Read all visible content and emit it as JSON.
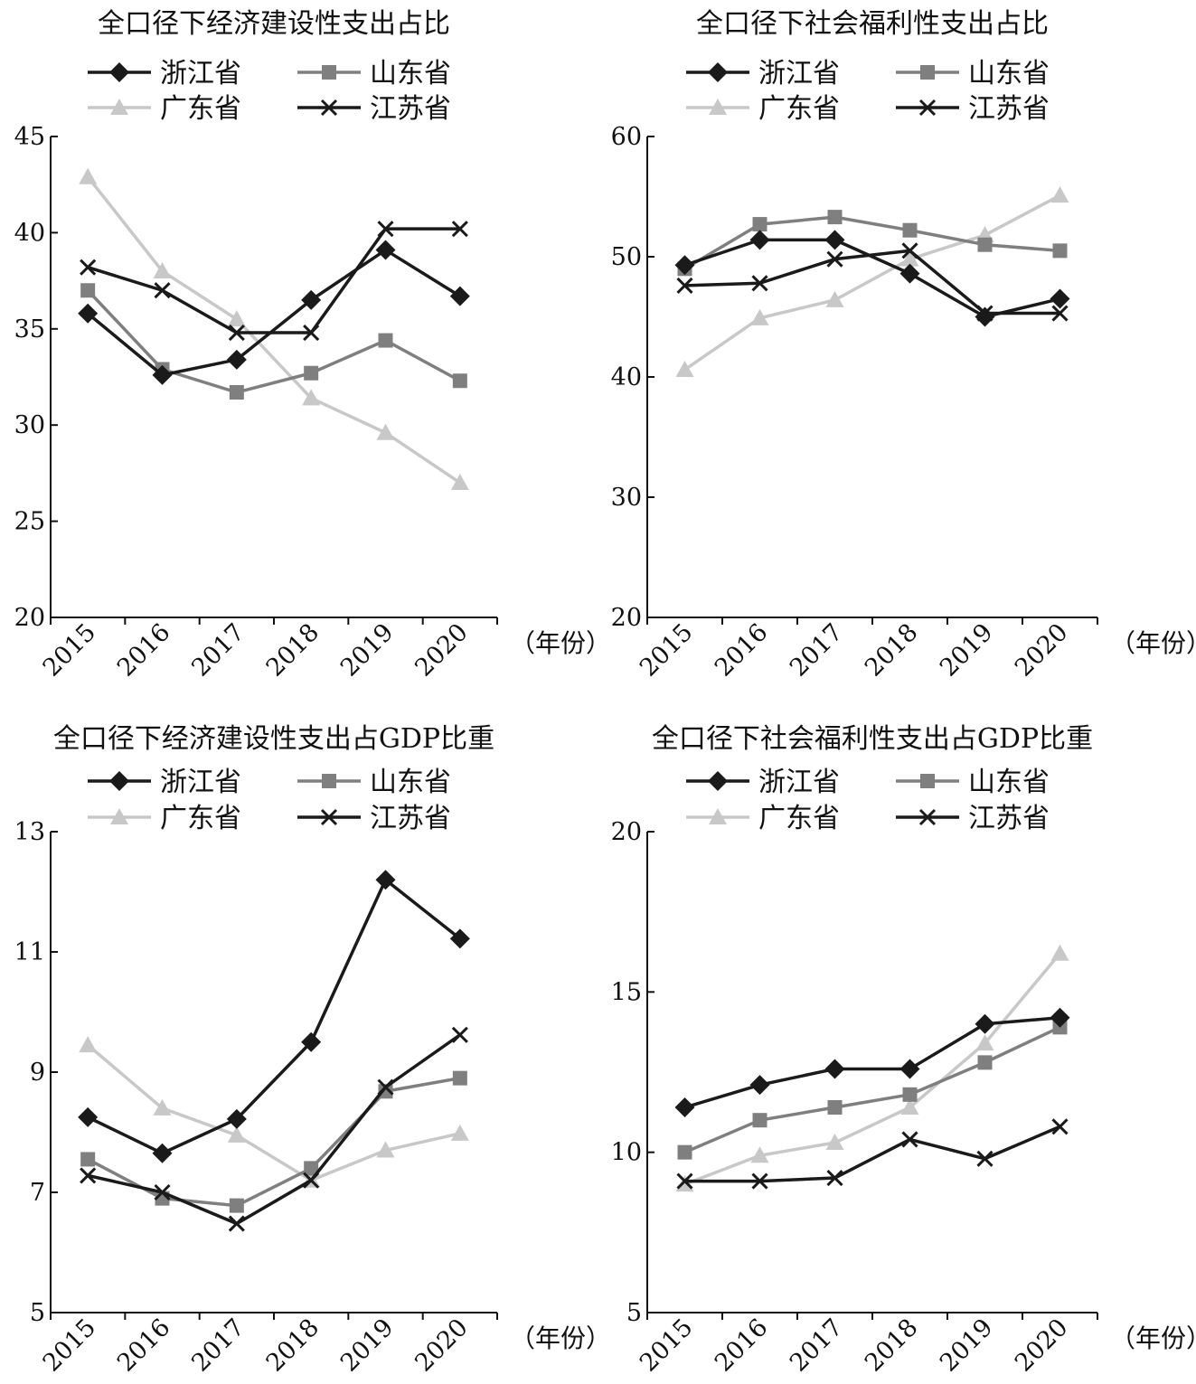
{
  "legend": {
    "zhejiang": "浙江省",
    "shandong": "山东省",
    "guangdong": "广东省",
    "jiangsu": "江苏省"
  },
  "x_unit": "（年份）",
  "colors": {
    "zhejiang": "#1a1a1a",
    "shandong": "#7f7f7f",
    "guangdong": "#c8c8c8",
    "jiangsu": "#1a1a1a"
  },
  "chart_data": [
    {
      "type": "line",
      "title": "全口径下经济建设性支出占比",
      "x": [
        "2015",
        "2016",
        "2017",
        "2018",
        "2019",
        "2020"
      ],
      "ylim": [
        20,
        45
      ],
      "yticks": [
        20,
        25,
        30,
        35,
        40,
        45
      ],
      "series": [
        {
          "name": "浙江省",
          "marker": "diamond",
          "values": [
            35.8,
            32.6,
            33.4,
            36.5,
            39.1,
            36.7
          ]
        },
        {
          "name": "山东省",
          "marker": "square",
          "values": [
            37.0,
            32.9,
            31.7,
            32.7,
            34.4,
            32.3
          ]
        },
        {
          "name": "广东省",
          "marker": "triangle",
          "values": [
            42.9,
            38.0,
            35.5,
            31.4,
            29.6,
            27.0
          ]
        },
        {
          "name": "江苏省",
          "marker": "x",
          "values": [
            38.2,
            37.0,
            34.8,
            34.8,
            40.2,
            40.2
          ]
        }
      ]
    },
    {
      "type": "line",
      "title": "全口径下社会福利性支出占比",
      "x": [
        "2015",
        "2016",
        "2017",
        "2018",
        "2019",
        "2020"
      ],
      "ylim": [
        20,
        60
      ],
      "yticks": [
        20,
        30,
        40,
        50,
        60
      ],
      "series": [
        {
          "name": "浙江省",
          "marker": "diamond",
          "values": [
            49.3,
            51.4,
            51.4,
            48.6,
            45.0,
            46.5
          ]
        },
        {
          "name": "山东省",
          "marker": "square",
          "values": [
            49.0,
            52.7,
            53.3,
            52.2,
            51.0,
            50.5
          ]
        },
        {
          "name": "广东省",
          "marker": "triangle",
          "values": [
            40.6,
            44.9,
            46.4,
            49.8,
            51.8,
            55.1
          ]
        },
        {
          "name": "江苏省",
          "marker": "x",
          "values": [
            47.6,
            47.8,
            49.8,
            50.5,
            45.3,
            45.3
          ]
        }
      ]
    },
    {
      "type": "line",
      "title": "全口径下经济建设性支出占GDP比重",
      "x": [
        "2015",
        "2016",
        "2017",
        "2018",
        "2019",
        "2020"
      ],
      "ylim": [
        5,
        13
      ],
      "yticks": [
        5,
        7,
        9,
        11,
        13
      ],
      "series": [
        {
          "name": "浙江省",
          "marker": "diamond",
          "values": [
            8.25,
            7.65,
            8.22,
            9.5,
            12.2,
            11.22
          ]
        },
        {
          "name": "山东省",
          "marker": "square",
          "values": [
            7.55,
            6.9,
            6.78,
            7.4,
            8.68,
            8.9
          ]
        },
        {
          "name": "广东省",
          "marker": "triangle",
          "values": [
            9.45,
            8.4,
            7.95,
            7.2,
            7.7,
            7.98
          ]
        },
        {
          "name": "江苏省",
          "marker": "x",
          "values": [
            7.28,
            7.0,
            6.48,
            7.2,
            8.75,
            9.62
          ]
        }
      ]
    },
    {
      "type": "line",
      "title": "全口径下社会福利性支出占GDP比重",
      "x": [
        "2015",
        "2016",
        "2017",
        "2018",
        "2019",
        "2020"
      ],
      "ylim": [
        5,
        20
      ],
      "yticks": [
        5,
        10,
        15,
        20
      ],
      "series": [
        {
          "name": "浙江省",
          "marker": "diamond",
          "values": [
            11.4,
            12.1,
            12.6,
            12.6,
            14.0,
            14.2
          ]
        },
        {
          "name": "山东省",
          "marker": "square",
          "values": [
            10.0,
            11.0,
            11.4,
            11.8,
            12.8,
            13.9
          ]
        },
        {
          "name": "广东省",
          "marker": "triangle",
          "values": [
            9.0,
            9.9,
            10.3,
            11.4,
            13.4,
            16.2
          ]
        },
        {
          "name": "江苏省",
          "marker": "x",
          "values": [
            9.1,
            9.1,
            9.2,
            10.4,
            9.8,
            10.8
          ]
        }
      ]
    }
  ]
}
